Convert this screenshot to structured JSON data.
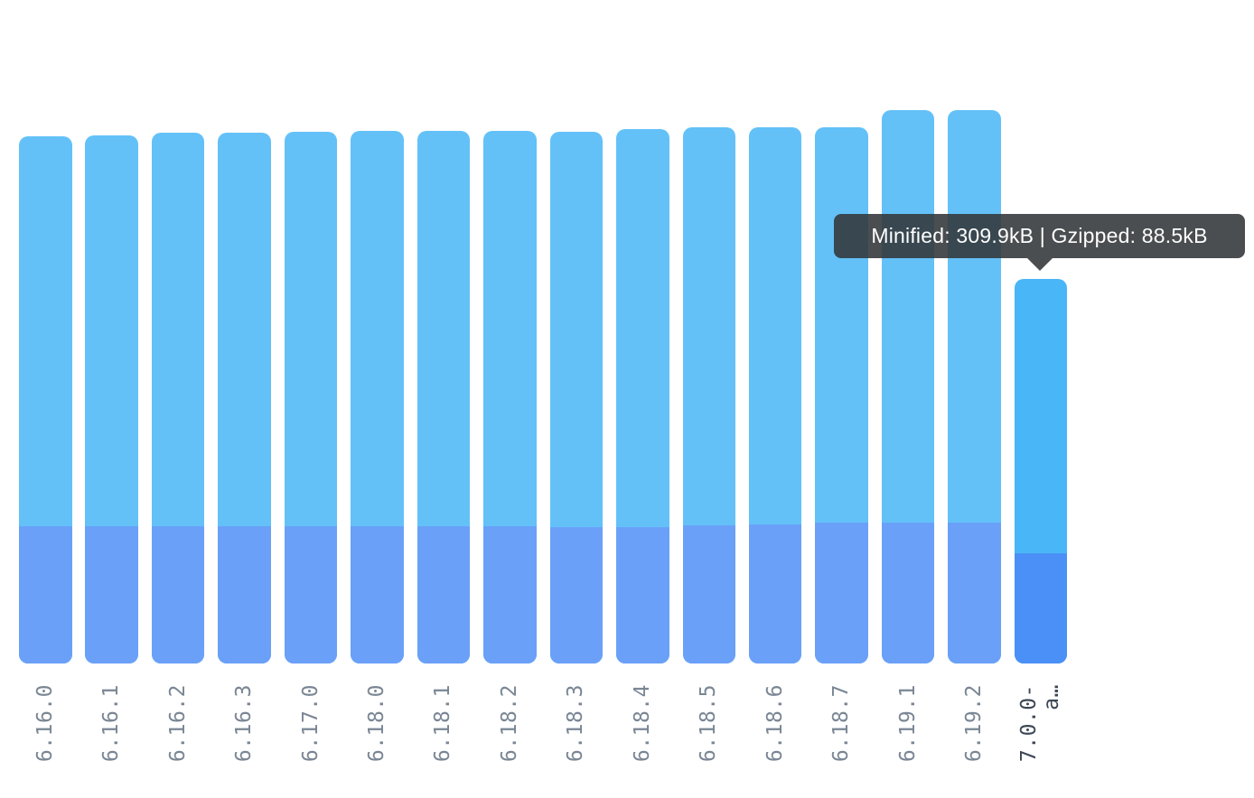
{
  "page": {
    "background": "#ffffff"
  },
  "tooltip": {
    "text": "Minified: 309.9kB | Gzipped: 88.5kB",
    "minified_label": "Minified",
    "minified_value": "309.9kB",
    "separator": "|",
    "gzipped_label": "Gzipped",
    "gzipped_value": "88.5kB"
  },
  "chart_data": {
    "type": "bar",
    "title": "",
    "xlabel": "",
    "ylabel": "",
    "unit": "kB",
    "grid": false,
    "y_axis_visible": false,
    "legend": false,
    "ylim": [
      0,
      446
    ],
    "categories": [
      "6.16.0",
      "6.16.1",
      "6.16.2",
      "6.16.3",
      "6.17.0",
      "6.18.0",
      "6.18.1",
      "6.18.2",
      "6.18.3",
      "6.18.4",
      "6.18.5",
      "6.18.6",
      "6.18.7",
      "6.19.1",
      "6.19.2",
      "7.0.0-a…"
    ],
    "tick_labels": [
      [
        "6.16.0"
      ],
      [
        "6.16.1"
      ],
      [
        "6.16.2"
      ],
      [
        "6.16.3"
      ],
      [
        "6.17.0"
      ],
      [
        "6.18.0"
      ],
      [
        "6.18.1"
      ],
      [
        "6.18.2"
      ],
      [
        "6.18.3"
      ],
      [
        "6.18.4"
      ],
      [
        "6.18.5"
      ],
      [
        "6.18.6"
      ],
      [
        "6.18.7"
      ],
      [
        "6.19.1"
      ],
      [
        "6.19.2"
      ],
      [
        "7.0.0-",
        "a…"
      ]
    ],
    "series": [
      {
        "name": "Minified",
        "unit": "kB",
        "values": [
          425,
          425.5,
          427.5,
          427.5,
          428.5,
          429,
          429,
          429,
          428.5,
          430.5,
          432,
          432,
          432,
          446,
          446,
          309.9
        ]
      },
      {
        "name": "Gzipped",
        "unit": "kB",
        "values": [
          110.5,
          110.5,
          110.5,
          110.5,
          110.5,
          110.5,
          110.5,
          110.5,
          110,
          110,
          111,
          112,
          113.5,
          113.5,
          113.5,
          88.5
        ]
      }
    ],
    "highlighted_index": 15,
    "render_note": "bar total height = minified size; bottom overlay segment = gzipped size; last bar is hovered/highlighted",
    "colors": {
      "bar_minified": "#63c1f8",
      "bar_gzipped": "#6aa0f8",
      "bar_minified_active": "#49b6f8",
      "bar_gzipped_active": "#4b90f6",
      "tick_label": "#7a8694",
      "tick_label_active": "#3c4654",
      "tooltip_bg": "rgba(50,53,56,0.88)",
      "tooltip_text": "#ffffff"
    }
  }
}
